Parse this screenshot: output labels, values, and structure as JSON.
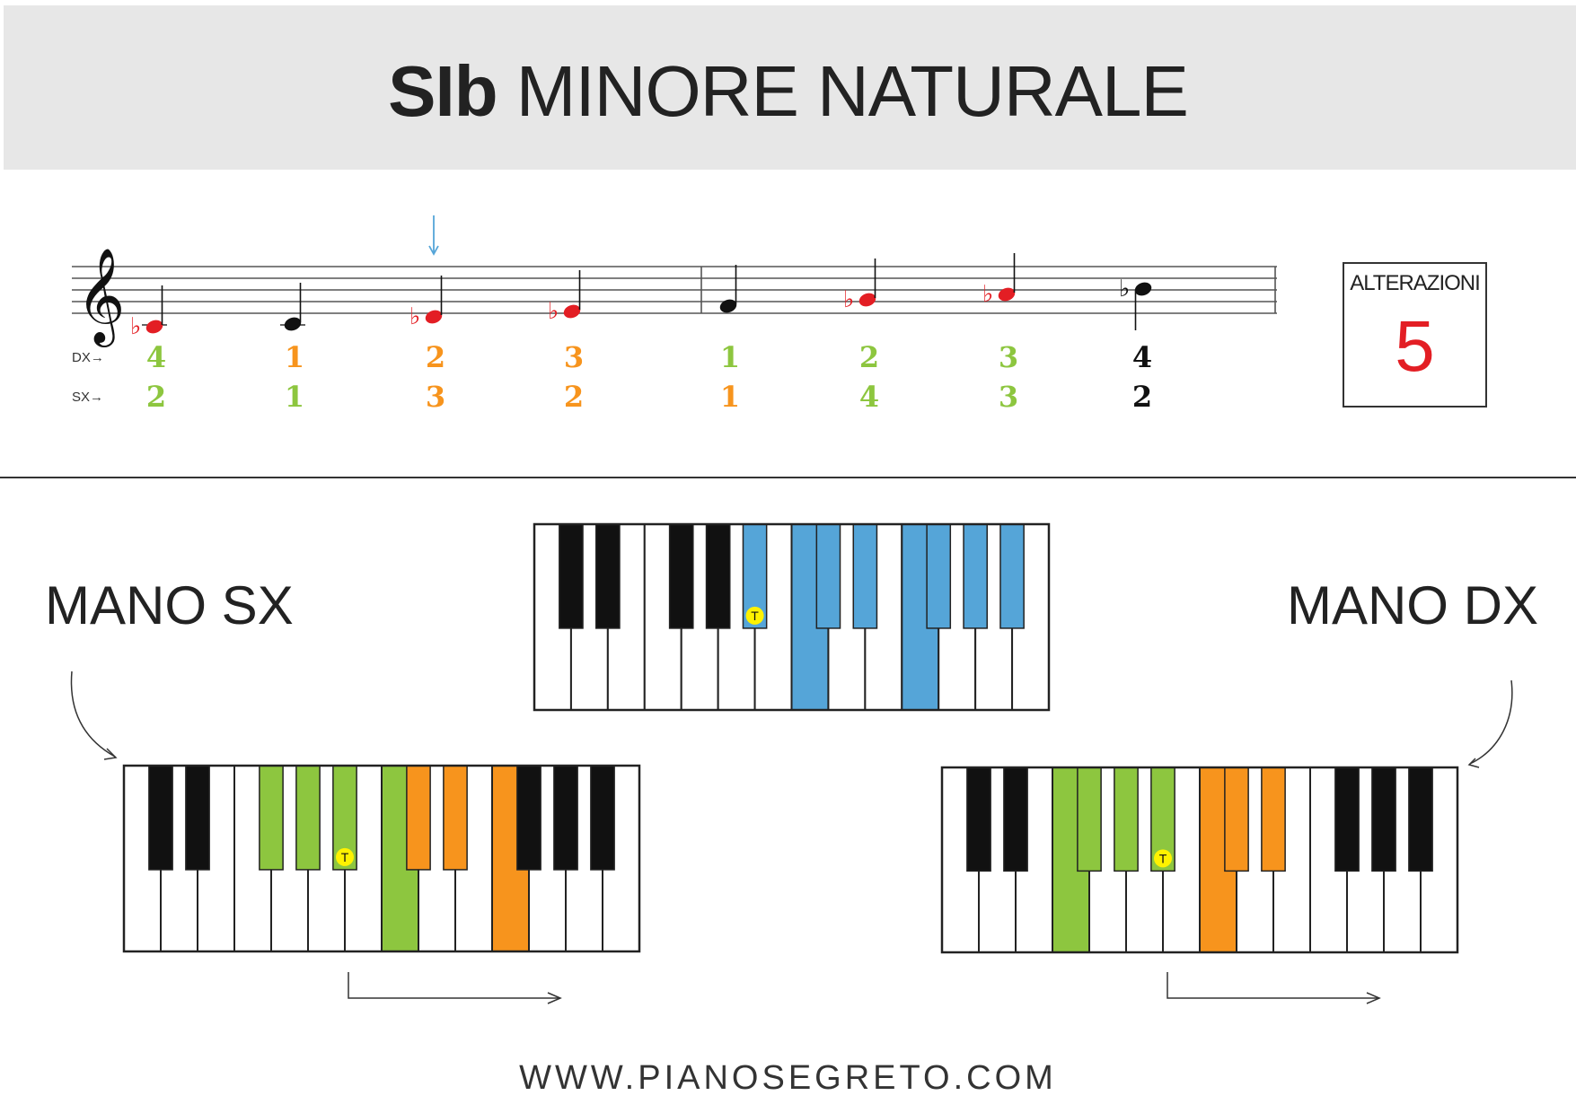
{
  "title": {
    "key": "SIb",
    "rest": " MINORE NATURALE"
  },
  "finger_labels": {
    "right_hand": "DX→",
    "left_hand": "SX→"
  },
  "scale_notes": [
    {
      "note": "Sib",
      "accidental": "flat",
      "color": "#e31e24",
      "dx": "4",
      "dx_color": "#8dc63f",
      "sx": "2",
      "sx_color": "#8dc63f"
    },
    {
      "note": "Do",
      "accidental": "",
      "color": "#111111",
      "dx": "1",
      "dx_color": "#f7941d",
      "sx": "1",
      "sx_color": "#8dc63f"
    },
    {
      "note": "Reb",
      "accidental": "flat",
      "color": "#e31e24",
      "dx": "2",
      "dx_color": "#f7941d",
      "sx": "3",
      "sx_color": "#f7941d"
    },
    {
      "note": "Mib",
      "accidental": "flat",
      "color": "#e31e24",
      "dx": "3",
      "dx_color": "#f7941d",
      "sx": "2",
      "sx_color": "#f7941d"
    },
    {
      "note": "Fa",
      "accidental": "",
      "color": "#111111",
      "dx": "1",
      "dx_color": "#8dc63f",
      "sx": "1",
      "sx_color": "#f7941d"
    },
    {
      "note": "Solb",
      "accidental": "flat",
      "color": "#e31e24",
      "dx": "2",
      "dx_color": "#8dc63f",
      "sx": "4",
      "sx_color": "#8dc63f"
    },
    {
      "note": "Lab",
      "accidental": "flat",
      "color": "#e31e24",
      "dx": "3",
      "dx_color": "#8dc63f",
      "sx": "3",
      "sx_color": "#8dc63f"
    },
    {
      "note": "Sib",
      "accidental": "flat",
      "color": "#111111",
      "dx": "4",
      "dx_color": "#111111",
      "sx": "2",
      "sx_color": "#111111"
    }
  ],
  "alterations": {
    "label": "ALTERAZIONI",
    "count": "5"
  },
  "hands": {
    "left_label": "MANO SX",
    "right_label": "MANO DX"
  },
  "tonic_marker": "T",
  "keyboards": {
    "center": {
      "white_keys": 14,
      "black_positions": [
        0,
        1,
        3,
        4,
        5,
        7,
        8,
        10,
        11,
        12
      ],
      "white_colors": {
        "7": "#55a5d8",
        "10": "#55a5d8"
      },
      "black_colors": {
        "5": "#55a5d8",
        "7": "#55a5d8",
        "8": "#55a5d8",
        "10": "#55a5d8",
        "11": "#55a5d8",
        "12": "#55a5d8"
      },
      "tonic": "b5"
    },
    "left": {
      "white_keys": 14,
      "black_positions": [
        0,
        1,
        3,
        4,
        5,
        7,
        8,
        10,
        11,
        12
      ],
      "white_colors": {
        "7": "#8dc63f",
        "10": "#f7941d"
      },
      "black_colors": {
        "3": "#8dc63f",
        "4": "#8dc63f",
        "5": "#8dc63f",
        "7": "#f7941d",
        "8": "#f7941d"
      },
      "tonic": "b5"
    },
    "right": {
      "white_keys": 14,
      "black_positions": [
        0,
        1,
        3,
        4,
        5,
        7,
        8,
        10,
        11,
        12
      ],
      "white_colors": {
        "3": "#8dc63f",
        "7": "#f7941d"
      },
      "black_colors": {
        "3": "#8dc63f",
        "4": "#8dc63f",
        "5": "#8dc63f",
        "7": "#f7941d",
        "8": "#f7941d"
      },
      "tonic": "b5"
    }
  },
  "colors": {
    "tonic_marker": "#fff200",
    "flat_note": "#e31e24",
    "start_arrow": "#55a5d8"
  },
  "footer": "WWW.PIANOSEGRETO.COM"
}
